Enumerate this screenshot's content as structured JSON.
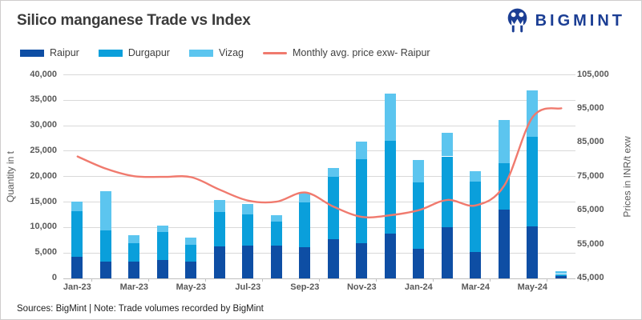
{
  "header": {
    "title": "Silico manganese Trade vs Index",
    "brand": "BIGMINT",
    "brand_color": "#1b3e94"
  },
  "legend": {
    "items": [
      {
        "label": "Raipur",
        "color": "#0e4ea4",
        "type": "bar"
      },
      {
        "label": "Durgapur",
        "color": "#0a9fdb",
        "type": "bar"
      },
      {
        "label": "Vizag",
        "color": "#5cc5ef",
        "type": "bar"
      },
      {
        "label": "Monthly avg. price exw- Raipur",
        "color": "#f07a6e",
        "type": "line"
      }
    ]
  },
  "footer": {
    "text": "Sources: BigMint | Note: Trade volumes recorded by BigMint"
  },
  "chart_data": {
    "type": "bar",
    "subtype": "stacked-bars-with-line-overlay",
    "categories": [
      "Jan-23",
      "Feb-23",
      "Mar-23",
      "Apr-23",
      "May-23",
      "Jun-23",
      "Jul-23",
      "Aug-23",
      "Sep-23",
      "Oct-23",
      "Nov-23",
      "Dec-23",
      "Jan-24",
      "Feb-24",
      "Mar-24",
      "Apr-24",
      "May-24",
      "Jun-24"
    ],
    "series": [
      {
        "name": "Raipur",
        "type": "bar",
        "axis": "left",
        "color": "#0e4ea4",
        "values": [
          4200,
          3300,
          3200,
          3500,
          3200,
          6200,
          6300,
          6300,
          6000,
          7600,
          6900,
          8700,
          5700,
          10000,
          5100,
          13500,
          10200,
          400
        ]
      },
      {
        "name": "Durgapur",
        "type": "bar",
        "axis": "left",
        "color": "#0a9fdb",
        "values": [
          9000,
          6100,
          3700,
          5500,
          3300,
          6800,
          6200,
          4800,
          8900,
          12300,
          16500,
          18300,
          13100,
          13900,
          13900,
          9100,
          17600,
          400
        ]
      },
      {
        "name": "Vizag",
        "type": "bar",
        "axis": "left",
        "color": "#5cc5ef",
        "values": [
          1800,
          7600,
          1500,
          1300,
          1500,
          2400,
          2000,
          1300,
          1900,
          1700,
          3400,
          9300,
          4400,
          4600,
          2000,
          8500,
          9000,
          500
        ]
      },
      {
        "name": "Monthly avg. price exw- Raipur",
        "type": "line",
        "axis": "right",
        "color": "#f07a6e",
        "values": [
          80800,
          77200,
          75000,
          74800,
          74700,
          71000,
          67800,
          67500,
          70200,
          66000,
          63000,
          63500,
          65000,
          68000,
          66400,
          72300,
          92500,
          95000
        ]
      }
    ],
    "left_axis": {
      "title": "Quantity in t",
      "min": 0,
      "max": 40000,
      "step": 5000,
      "ticks": [
        "0",
        "5,000",
        "10,000",
        "15,000",
        "20,000",
        "25,000",
        "30,000",
        "35,000",
        "40,000"
      ]
    },
    "right_axis": {
      "title": "Prices in INR/t exw",
      "min": 45000,
      "max": 105000,
      "step": 10000,
      "ticks": [
        "45,000",
        "55,000",
        "65,000",
        "75,000",
        "85,000",
        "95,000",
        "105,000"
      ]
    },
    "x_axis": {
      "visible_labels": [
        "Jan-23",
        "Mar-23",
        "May-23",
        "Jul-23",
        "Sep-23",
        "Nov-23",
        "Jan-24",
        "Mar-24",
        "May-24"
      ],
      "label_every_n": 2
    },
    "grid": "horizontal",
    "legend_position": "top-left",
    "colors": {
      "gridline": "#d9d9d9",
      "axis_line": "#bfbfbf",
      "tick_text": "#595959"
    }
  }
}
